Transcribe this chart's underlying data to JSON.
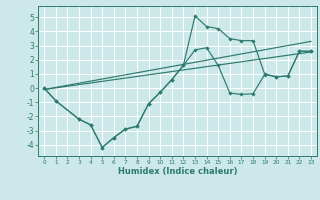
{
  "xlabel": "Humidex (Indice chaleur)",
  "xlim": [
    -0.5,
    23.5
  ],
  "ylim": [
    -4.8,
    5.8
  ],
  "xticks": [
    0,
    1,
    2,
    3,
    4,
    5,
    6,
    7,
    8,
    9,
    10,
    11,
    12,
    13,
    14,
    15,
    16,
    17,
    18,
    19,
    20,
    21,
    22,
    23
  ],
  "yticks": [
    -4,
    -3,
    -2,
    -1,
    0,
    1,
    2,
    3,
    4,
    5
  ],
  "bg_color": "#cce8e8",
  "line_color": "#2d7a6e",
  "grid_color": "#ffffff",
  "line1_x": [
    0,
    1,
    3,
    4,
    5,
    6,
    7,
    8,
    9,
    10,
    11,
    12,
    13,
    14,
    15,
    16,
    17,
    18,
    19,
    20,
    21,
    22,
    23
  ],
  "line1_y": [
    0.0,
    -0.9,
    -2.2,
    -2.6,
    -4.2,
    -3.5,
    -2.9,
    -2.7,
    -1.1,
    -0.3,
    0.6,
    1.6,
    5.1,
    4.35,
    4.2,
    3.5,
    3.35,
    3.35,
    1.0,
    0.8,
    0.85,
    2.6,
    2.6
  ],
  "line2_x": [
    0,
    1,
    3,
    4,
    5,
    6,
    7,
    8,
    9,
    10,
    11,
    12,
    13,
    14,
    15,
    16,
    17,
    18,
    19,
    20,
    21,
    22,
    23
  ],
  "line2_y": [
    0.0,
    -0.9,
    -2.2,
    -2.6,
    -4.2,
    -3.5,
    -2.9,
    -2.7,
    -1.1,
    -0.3,
    0.6,
    1.6,
    2.7,
    2.85,
    1.6,
    -0.35,
    -0.45,
    -0.4,
    0.95,
    0.8,
    0.85,
    2.6,
    2.6
  ],
  "line3_x": [
    0,
    23
  ],
  "line3_y": [
    -0.1,
    3.3
  ],
  "line4_x": [
    0,
    23
  ],
  "line4_y": [
    -0.1,
    2.55
  ]
}
